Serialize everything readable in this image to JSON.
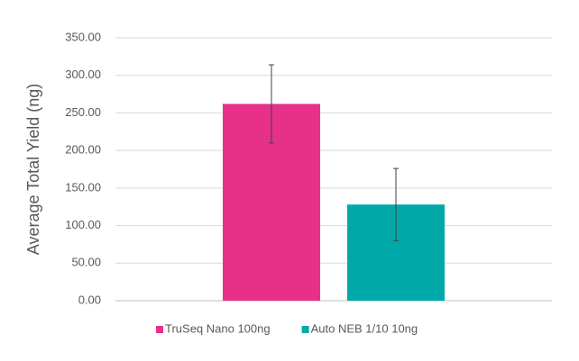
{
  "chart_data": {
    "type": "bar",
    "y_label": "Average Total Yield (ng)",
    "categories": [
      null
    ],
    "series": [
      {
        "name": "TruSeq Nano 100ng",
        "color": "#e6308a",
        "values": [
          262
        ],
        "errors": [
          52
        ]
      },
      {
        "name": "Auto NEB 1/10 10ng",
        "color": "#00a8a8",
        "values": [
          128
        ],
        "errors": [
          48
        ]
      }
    ],
    "ylim": [
      0,
      350
    ],
    "yticks": [
      {
        "value": 0,
        "label": "0.00"
      },
      {
        "value": 50,
        "label": "50.00"
      },
      {
        "value": 100,
        "label": "100.00"
      },
      {
        "value": 150,
        "label": "150.00"
      },
      {
        "value": 200,
        "label": "200.00"
      },
      {
        "value": 250,
        "label": "250.00"
      },
      {
        "value": 300,
        "label": "300.00"
      },
      {
        "value": 350,
        "label": "350.00"
      }
    ],
    "grid": true,
    "legend": "bottom"
  }
}
